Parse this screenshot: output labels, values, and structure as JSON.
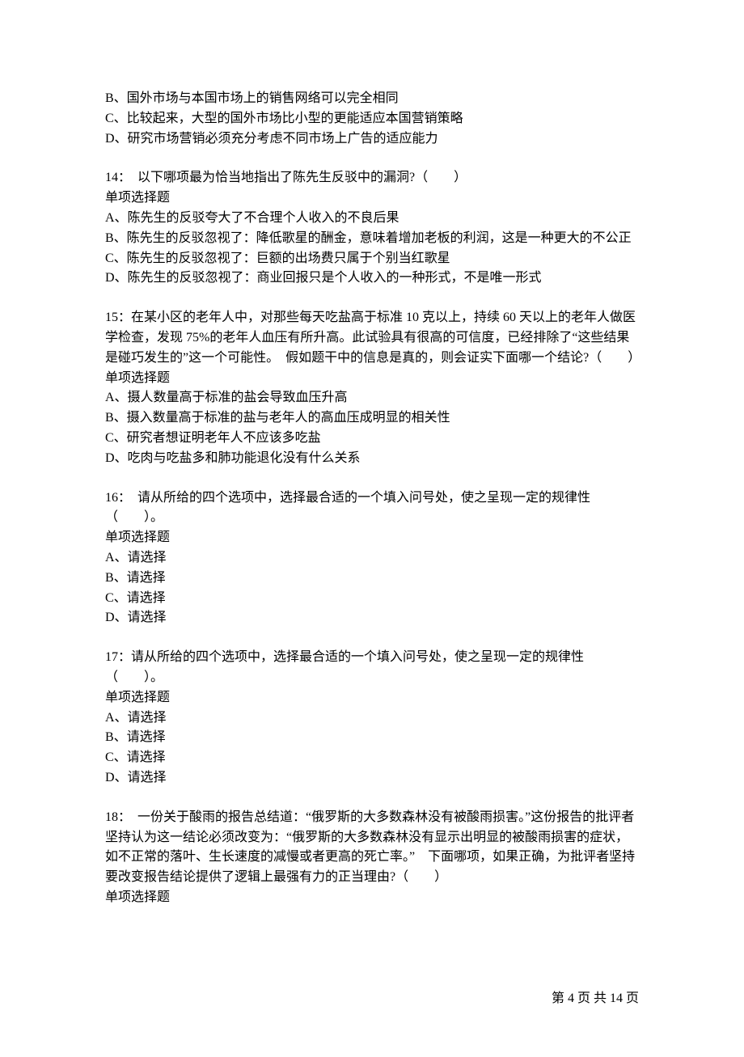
{
  "partial_q13": {
    "options": [
      "B、国外市场与本国市场上的销售网络可以完全相同",
      "C、比较起来，大型的国外市场比小型的更能适应本国营销策略",
      "D、研究市场营销必须充分考虑不同市场上广告的适应能力"
    ]
  },
  "q14": {
    "stem": "14：　以下哪项最为恰当地指出了陈先生反驳中的漏洞?（　　）",
    "qtype": "单项选择题",
    "options": [
      "A、陈先生的反驳夸大了不合理个人收入的不良后果",
      "B、陈先生的反驳忽视了：降低歌星的酬金，意味着增加老板的利润，这是一种更大的不公正",
      "C、陈先生的反驳忽视了：巨额的出场费只属于个别当红歌星",
      "D、陈先生的反驳忽视了：商业回报只是个人收入的一种形式，不是唯一形式"
    ]
  },
  "q15": {
    "stem": "15：在某小区的老年人中，对那些每天吃盐高于标准 10 克以上，持续 60 天以上的老年人做医学检查，发现 75%的老年人血压有所升高。此试验具有很高的可信度，已经排除了“这些结果是碰巧发生的”这一个可能性。　假如题干中的信息是真的，则会证实下面哪一个结论?（　　）",
    "qtype": "单项选择题",
    "options": [
      "A、摄人数量高于标准的盐会导致血压升高",
      "B、摄入数量高于标准的盐与老年人的高血压成明显的相关性",
      "C、研究者想证明老年人不应该多吃盐",
      "D、吃肉与吃盐多和肺功能退化没有什么关系"
    ]
  },
  "q16": {
    "stem": "16：　请从所给的四个选项中，选择最合适的一个填入问号处，使之呈现一定的规律性（　　）。",
    "qtype": "单项选择题",
    "options": [
      "A、请选择",
      "B、请选择",
      "C、请选择",
      "D、请选择"
    ]
  },
  "q17": {
    "stem": "17：请从所给的四个选项中，选择最合适的一个填入问号处，使之呈现一定的规律性（　　）。",
    "qtype": "单项选择题",
    "options": [
      "A、请选择",
      "B、请选择",
      "C、请选择",
      "D、请选择"
    ]
  },
  "q18": {
    "stem": "18：　一份关于酸雨的报告总结道：“俄罗斯的大多数森林没有被酸雨损害。”这份报告的批评者坚持认为这一结论必须改变为：“俄罗斯的大多数森林没有显示出明显的被酸雨损害的症状，如不正常的落叶、生长速度的减慢或者更高的死亡率。”　下面哪项，如果正确，为批评者坚持要改变报告结论提供了逻辑上最强有力的正当理由?（　　）",
    "qtype": "单项选择题"
  },
  "footer": "第 4 页 共 14 页"
}
